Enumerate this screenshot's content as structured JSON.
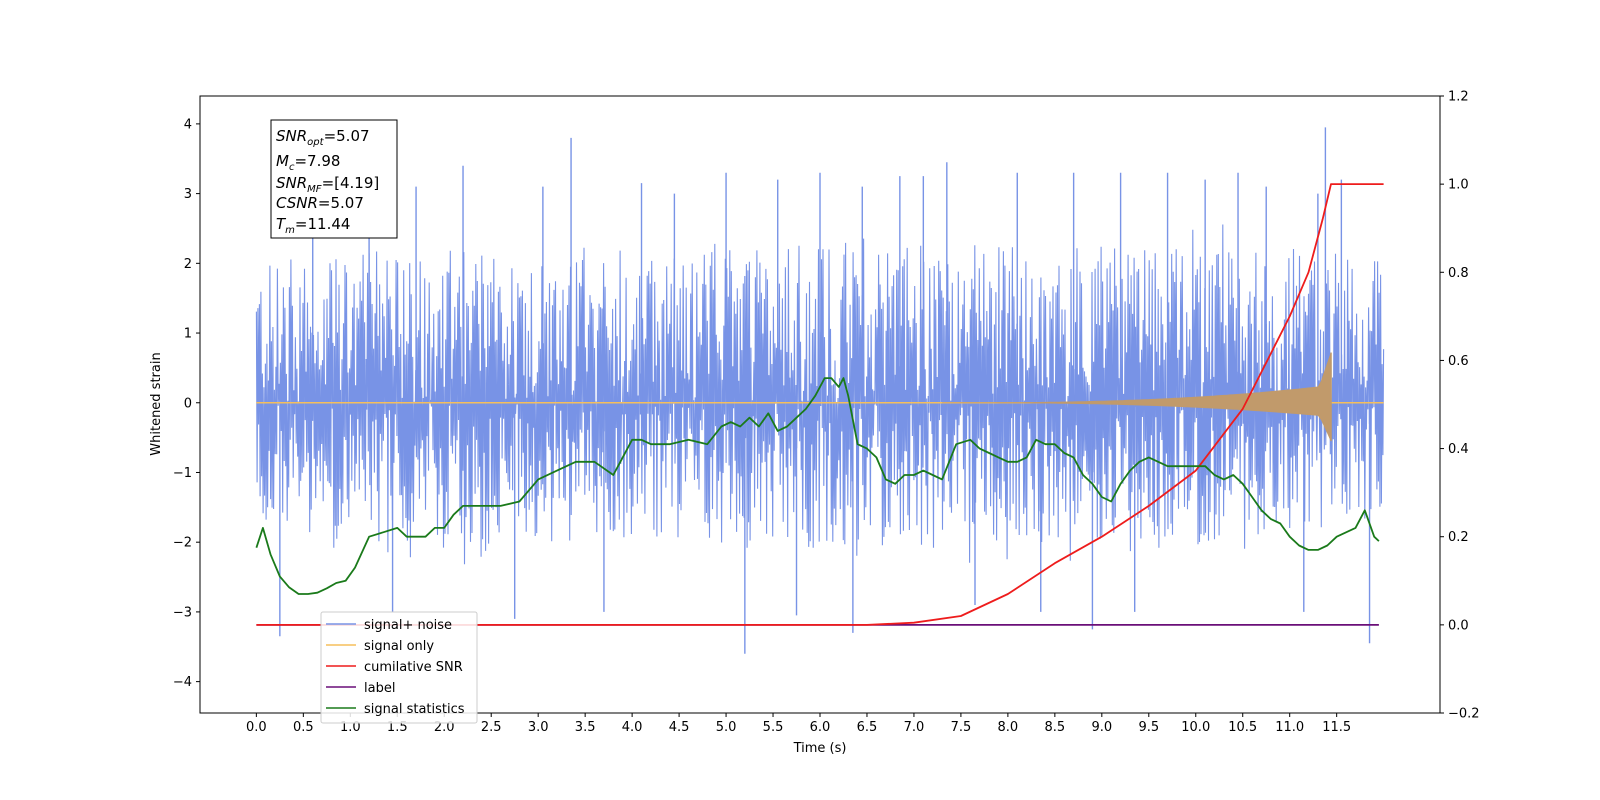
{
  "chart_data": {
    "type": "line",
    "xlabel": "Time (s)",
    "ylabel": "Whitened strain",
    "xlim": [
      -0.6,
      12.6
    ],
    "ylim": [
      -4.45,
      4.4
    ],
    "y2lim": [
      -0.2,
      1.2
    ],
    "grid": false,
    "legend_placement": "lower-left",
    "x_ticks": [
      0.0,
      0.5,
      1.0,
      1.5,
      2.0,
      2.5,
      3.0,
      3.5,
      4.0,
      4.5,
      5.0,
      5.5,
      6.0,
      6.5,
      7.0,
      7.5,
      8.0,
      8.5,
      9.0,
      9.5,
      10.0,
      10.5,
      11.0,
      11.5
    ],
    "x_tick_labels": [
      "0.0",
      "0.5",
      "1.0",
      "1.5",
      "2.0",
      "2.5",
      "3.0",
      "3.5",
      "4.0",
      "4.5",
      "5.0",
      "5.5",
      "6.0",
      "6.5",
      "7.0",
      "7.5",
      "8.0",
      "8.5",
      "9.0",
      "9.5",
      "10.0",
      "10.5",
      "11.0",
      "11.5"
    ],
    "y_ticks": [
      -4,
      -3,
      -2,
      -1,
      0,
      1,
      2,
      3,
      4
    ],
    "y_tick_labels": [
      "−4",
      "−3",
      "−2",
      "−1",
      "0",
      "1",
      "2",
      "3",
      "4"
    ],
    "y2_ticks": [
      -0.2,
      0.0,
      0.2,
      0.4,
      0.6,
      0.8,
      1.0,
      1.2
    ],
    "y2_tick_labels": [
      "−0.2",
      "0.0",
      "0.2",
      "0.4",
      "0.6",
      "0.8",
      "1.0",
      "1.2"
    ],
    "annotation": {
      "snr_opt": {
        "label": "SNR",
        "sub": "opt",
        "value": "=5.07"
      },
      "mc": {
        "label": "M",
        "sub": "c",
        "value": "=7.98"
      },
      "snr_mf": {
        "label": "SNR",
        "sub": "MF",
        "value": "=[4.19]"
      },
      "csnr": {
        "label": "CSNR",
        "value": "=5.07"
      },
      "tm": {
        "label": "T",
        "sub": "m",
        "value": "=11.44"
      }
    },
    "series": [
      {
        "name": "signal+ noise",
        "color": "#7893e6",
        "axis": "left",
        "x_range": [
          0.0,
          12.0
        ],
        "band_x": [
          0.0,
          1.0,
          2.0,
          3.0,
          4.0,
          5.0,
          6.0,
          7.0,
          8.0,
          9.0,
          10.0,
          11.0,
          12.0
        ],
        "band_low": [
          -1.9,
          -2.1,
          -2.2,
          -2.2,
          -2.1,
          -2.2,
          -2.2,
          -2.2,
          -2.1,
          -2.1,
          -2.1,
          -2.0,
          -1.8
        ],
        "band_high": [
          2.1,
          2.3,
          2.3,
          2.3,
          2.2,
          2.3,
          2.4,
          2.4,
          2.4,
          2.4,
          2.3,
          2.4,
          2.2
        ],
        "spike_x": [
          0.25,
          0.6,
          1.2,
          1.45,
          1.7,
          2.2,
          2.75,
          3.05,
          3.35,
          3.7,
          4.1,
          4.45,
          5.0,
          5.2,
          5.55,
          5.75,
          6.0,
          6.35,
          6.45,
          6.85,
          7.1,
          7.35,
          7.65,
          8.1,
          8.35,
          8.7,
          8.9,
          9.2,
          9.35,
          9.7,
          10.1,
          10.45,
          10.75,
          11.15,
          11.3,
          11.38,
          11.55,
          11.85
        ],
        "spike_y": [
          -3.35,
          2.8,
          3.1,
          -3.0,
          3.1,
          3.4,
          -3.1,
          3.1,
          3.8,
          -3.0,
          3.15,
          3.0,
          3.3,
          -3.6,
          3.2,
          -3.05,
          3.3,
          -3.3,
          3.1,
          3.25,
          3.25,
          3.45,
          -2.9,
          3.3,
          -3.0,
          3.3,
          -3.25,
          3.3,
          -3.0,
          3.3,
          3.2,
          3.3,
          3.1,
          -3.0,
          3.0,
          3.95,
          3.2,
          -3.45
        ]
      },
      {
        "name": "signal only",
        "color": "#f5bf5c",
        "axis": "left",
        "chirp_start": 7.3,
        "chirp_end": 11.44,
        "peak_amplitude_top": 0.72,
        "peak_amplitude_bottom": -0.55,
        "flat_end": 12.0
      },
      {
        "name": "cumilative SNR",
        "color": "#ee1c1c",
        "axis": "right",
        "x": [
          0.0,
          6.0,
          6.5,
          7.0,
          7.5,
          8.0,
          8.5,
          9.0,
          9.5,
          10.0,
          10.5,
          11.0,
          11.2,
          11.35,
          11.44,
          11.6,
          12.0
        ],
        "y": [
          0.0,
          0.0,
          0.0,
          0.005,
          0.02,
          0.07,
          0.14,
          0.2,
          0.27,
          0.35,
          0.49,
          0.7,
          0.8,
          0.92,
          1.0,
          1.0,
          1.0
        ]
      },
      {
        "name": "label",
        "color": "#6a0f78",
        "axis": "right",
        "x": [
          0.0,
          11.95
        ],
        "y": [
          0.0,
          0.0
        ]
      },
      {
        "name": "signal statistics",
        "color": "#1a7a1a",
        "axis": "right",
        "x": [
          0.0,
          0.07,
          0.15,
          0.25,
          0.35,
          0.45,
          0.55,
          0.65,
          0.75,
          0.85,
          0.95,
          1.05,
          1.2,
          1.35,
          1.5,
          1.6,
          1.7,
          1.8,
          1.9,
          2.0,
          2.1,
          2.2,
          2.4,
          2.6,
          2.8,
          3.0,
          3.2,
          3.4,
          3.6,
          3.8,
          3.9,
          4.0,
          4.1,
          4.2,
          4.4,
          4.6,
          4.8,
          4.95,
          5.05,
          5.15,
          5.25,
          5.35,
          5.45,
          5.55,
          5.65,
          5.75,
          5.85,
          5.95,
          6.05,
          6.12,
          6.2,
          6.25,
          6.3,
          6.4,
          6.5,
          6.6,
          6.7,
          6.8,
          6.9,
          7.0,
          7.1,
          7.2,
          7.3,
          7.45,
          7.6,
          7.7,
          7.8,
          7.9,
          8.0,
          8.1,
          8.2,
          8.3,
          8.4,
          8.5,
          8.6,
          8.7,
          8.8,
          8.9,
          9.0,
          9.1,
          9.2,
          9.3,
          9.4,
          9.5,
          9.6,
          9.7,
          9.8,
          9.9,
          10.0,
          10.1,
          10.2,
          10.3,
          10.4,
          10.5,
          10.6,
          10.7,
          10.8,
          10.9,
          11.0,
          11.1,
          11.2,
          11.3,
          11.4,
          11.5,
          11.6,
          11.7,
          11.8,
          11.9,
          11.95
        ],
        "y": [
          0.175,
          0.22,
          0.16,
          0.11,
          0.085,
          0.07,
          0.07,
          0.073,
          0.083,
          0.095,
          0.1,
          0.13,
          0.2,
          0.21,
          0.22,
          0.2,
          0.2,
          0.2,
          0.22,
          0.22,
          0.25,
          0.27,
          0.27,
          0.27,
          0.28,
          0.33,
          0.35,
          0.37,
          0.37,
          0.34,
          0.38,
          0.42,
          0.42,
          0.41,
          0.41,
          0.42,
          0.41,
          0.45,
          0.46,
          0.45,
          0.47,
          0.45,
          0.48,
          0.44,
          0.45,
          0.47,
          0.49,
          0.52,
          0.56,
          0.56,
          0.54,
          0.56,
          0.52,
          0.41,
          0.4,
          0.38,
          0.33,
          0.32,
          0.34,
          0.34,
          0.35,
          0.34,
          0.33,
          0.41,
          0.42,
          0.4,
          0.39,
          0.38,
          0.37,
          0.37,
          0.38,
          0.42,
          0.41,
          0.41,
          0.39,
          0.38,
          0.34,
          0.32,
          0.29,
          0.28,
          0.32,
          0.35,
          0.37,
          0.38,
          0.37,
          0.36,
          0.36,
          0.36,
          0.36,
          0.36,
          0.34,
          0.33,
          0.34,
          0.32,
          0.29,
          0.26,
          0.24,
          0.23,
          0.2,
          0.18,
          0.17,
          0.17,
          0.18,
          0.2,
          0.21,
          0.22,
          0.26,
          0.2,
          0.19
        ]
      }
    ]
  },
  "legend": {
    "items": [
      {
        "label": "signal+ noise",
        "color": "#7893e6"
      },
      {
        "label": "signal only",
        "color": "#f5bf5c"
      },
      {
        "label": "cumilative SNR",
        "color": "#ee1c1c"
      },
      {
        "label": "label",
        "color": "#6a0f78"
      },
      {
        "label": "signal statistics",
        "color": "#1a7a1a"
      }
    ]
  }
}
